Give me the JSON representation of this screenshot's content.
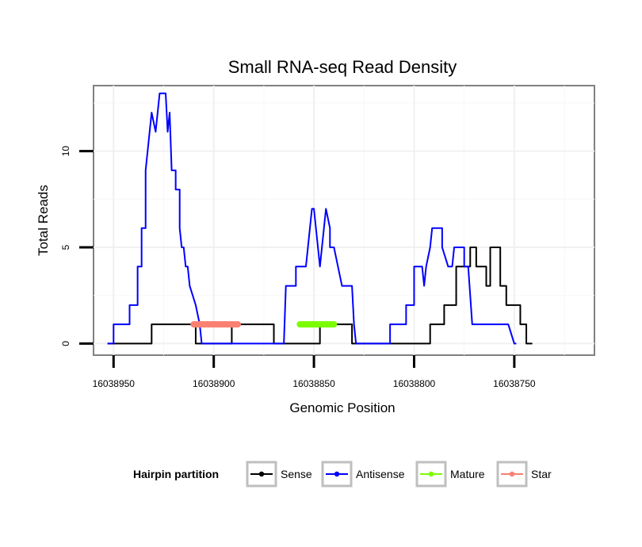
{
  "chart_data": {
    "type": "line",
    "title": "Small RNA-seq Read Density",
    "xlabel": "Genomic Position",
    "ylabel": "Total Reads",
    "x_reversed": true,
    "xlim": [
      16038960,
      16038710
    ],
    "ylim": [
      -0.6,
      13.4
    ],
    "x_ticks": [
      16038950,
      16038900,
      16038850,
      16038800,
      16038750
    ],
    "x_tick_labels": [
      "16038950",
      "16038900",
      "16038850",
      "16038800",
      "16038750"
    ],
    "y_ticks": [
      0,
      5,
      10
    ],
    "y_tick_labels": [
      "0",
      "5",
      "10"
    ],
    "legend": {
      "title": "Hairpin partition",
      "position": "bottom",
      "items": [
        {
          "label": "Sense",
          "color": "#000000"
        },
        {
          "label": "Antisense",
          "color": "#0000ff"
        },
        {
          "label": "Mature",
          "color": "#7cfc00"
        },
        {
          "label": "Star",
          "color": "#fa8072"
        }
      ]
    },
    "series": [
      {
        "name": "Sense",
        "color": "#000000",
        "points": [
          [
            16038953,
            0
          ],
          [
            16038931,
            0
          ],
          [
            16038931,
            1
          ],
          [
            16038909,
            1
          ],
          [
            16038909,
            0
          ],
          [
            16038891,
            0
          ],
          [
            16038891,
            1
          ],
          [
            16038870,
            1
          ],
          [
            16038870,
            0
          ],
          [
            16038847,
            0
          ],
          [
            16038847,
            1
          ],
          [
            16038831,
            1
          ],
          [
            16038831,
            0
          ],
          [
            16038792,
            0
          ],
          [
            16038792,
            1
          ],
          [
            16038785,
            1
          ],
          [
            16038785,
            2
          ],
          [
            16038779,
            2
          ],
          [
            16038779,
            4
          ],
          [
            16038772,
            4
          ],
          [
            16038772,
            5
          ],
          [
            16038769,
            5
          ],
          [
            16038769,
            4
          ],
          [
            16038764,
            4
          ],
          [
            16038764,
            3
          ],
          [
            16038762,
            3
          ],
          [
            16038762,
            5
          ],
          [
            16038757,
            5
          ],
          [
            16038757,
            3
          ],
          [
            16038754,
            3
          ],
          [
            16038754,
            2
          ],
          [
            16038747,
            2
          ],
          [
            16038747,
            1
          ],
          [
            16038744,
            1
          ],
          [
            16038744,
            0
          ],
          [
            16038741,
            0
          ]
        ]
      },
      {
        "name": "Antisense",
        "color": "#0000ff",
        "points": [
          [
            16038953,
            0
          ],
          [
            16038950,
            0
          ],
          [
            16038950,
            1
          ],
          [
            16038942,
            1
          ],
          [
            16038942,
            2
          ],
          [
            16038938,
            2
          ],
          [
            16038938,
            4
          ],
          [
            16038936,
            4
          ],
          [
            16038936,
            6
          ],
          [
            16038934,
            6
          ],
          [
            16038934,
            9
          ],
          [
            16038932,
            11
          ],
          [
            16038931,
            12
          ],
          [
            16038929,
            11
          ],
          [
            16038928,
            12
          ],
          [
            16038927,
            13
          ],
          [
            16038924,
            13
          ],
          [
            16038923,
            11
          ],
          [
            16038922,
            12
          ],
          [
            16038921,
            9
          ],
          [
            16038919,
            9
          ],
          [
            16038919,
            8
          ],
          [
            16038917,
            8
          ],
          [
            16038917,
            6
          ],
          [
            16038916,
            5
          ],
          [
            16038915,
            5
          ],
          [
            16038914,
            4
          ],
          [
            16038913,
            4
          ],
          [
            16038912,
            3
          ],
          [
            16038909,
            2
          ],
          [
            16038907,
            1
          ],
          [
            16038906,
            0
          ],
          [
            16038865,
            0
          ],
          [
            16038864,
            3
          ],
          [
            16038859,
            3
          ],
          [
            16038859,
            4
          ],
          [
            16038854,
            4
          ],
          [
            16038852,
            6
          ],
          [
            16038851,
            7
          ],
          [
            16038850,
            7
          ],
          [
            16038847,
            4
          ],
          [
            16038845,
            6
          ],
          [
            16038844,
            7
          ],
          [
            16038842,
            6
          ],
          [
            16038842,
            5
          ],
          [
            16038840,
            5
          ],
          [
            16038838,
            4
          ],
          [
            16038836,
            3
          ],
          [
            16038831,
            3
          ],
          [
            16038830,
            1
          ],
          [
            16038829,
            0
          ],
          [
            16038812,
            0
          ],
          [
            16038812,
            1
          ],
          [
            16038804,
            1
          ],
          [
            16038804,
            2
          ],
          [
            16038800,
            2
          ],
          [
            16038800,
            4
          ],
          [
            16038796,
            4
          ],
          [
            16038795,
            3
          ],
          [
            16038794,
            4
          ],
          [
            16038792,
            5
          ],
          [
            16038791,
            6
          ],
          [
            16038786,
            6
          ],
          [
            16038786,
            5
          ],
          [
            16038783,
            4
          ],
          [
            16038781,
            4
          ],
          [
            16038780,
            5
          ],
          [
            16038775,
            5
          ],
          [
            16038775,
            4
          ],
          [
            16038773,
            4
          ],
          [
            16038771,
            1
          ],
          [
            16038764,
            1
          ],
          [
            16038754,
            1
          ],
          [
            16038753,
            1
          ],
          [
            16038750,
            0
          ],
          [
            16038749,
            0
          ]
        ]
      },
      {
        "name": "Mature",
        "color": "#7cfc00",
        "points": [
          [
            16038857,
            1
          ],
          [
            16038840,
            1
          ]
        ]
      },
      {
        "name": "Star",
        "color": "#fa8072",
        "points": [
          [
            16038910,
            1
          ],
          [
            16038888,
            1
          ]
        ]
      }
    ]
  }
}
